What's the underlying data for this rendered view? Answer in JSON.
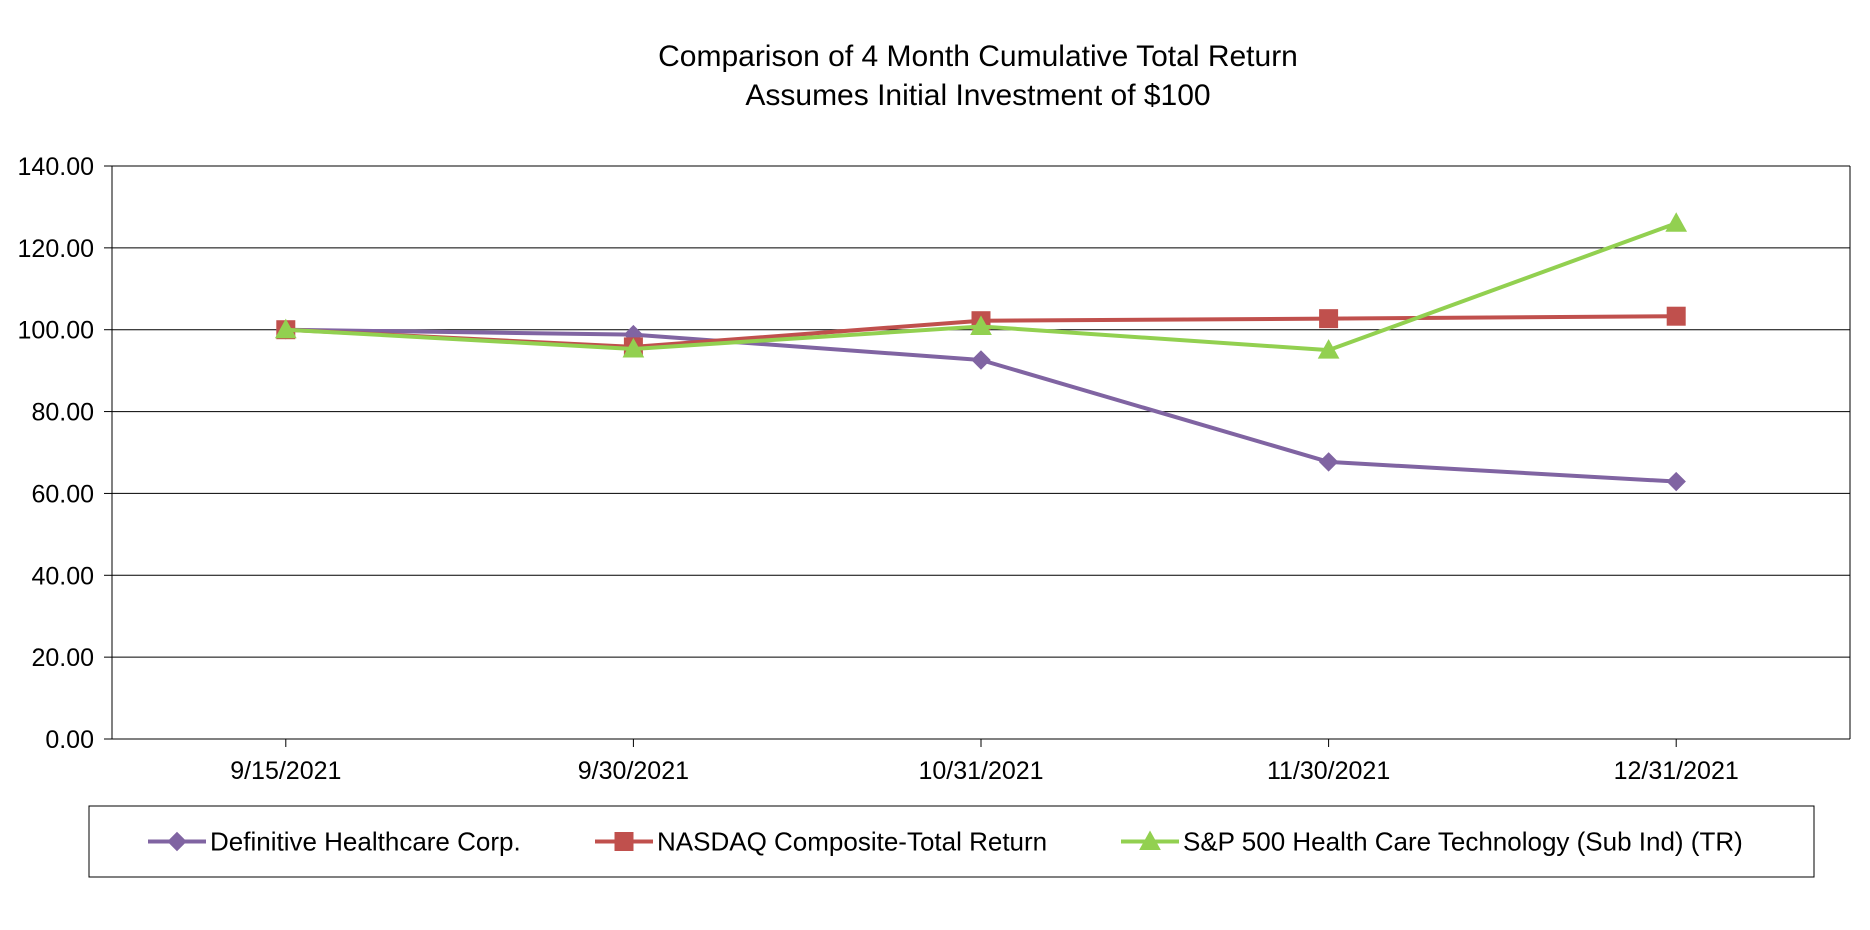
{
  "chart_data": {
    "type": "line",
    "title_lines": [
      "Comparison of 4 Month Cumulative Total Return",
      "Assumes Initial Investment of $100"
    ],
    "xlabel": "",
    "ylabel": "",
    "categories": [
      "9/15/2021",
      "9/30/2021",
      "10/31/2021",
      "11/30/2021",
      "12/31/2021"
    ],
    "ylim": [
      0,
      140
    ],
    "y_ticks": [
      "0.00",
      "20.00",
      "40.00",
      "60.00",
      "80.00",
      "100.00",
      "120.00",
      "140.00"
    ],
    "grid": true,
    "legend_position": "bottom",
    "series": [
      {
        "name": "Definitive Healthcare Corp.",
        "marker": "diamond",
        "color": "#8064A2",
        "values": [
          100.0,
          98.8,
          92.6,
          67.7,
          62.9
        ]
      },
      {
        "name": "NASDAQ Composite-Total Return",
        "marker": "square",
        "color": "#C0504D",
        "values": [
          100.0,
          95.8,
          102.2,
          102.7,
          103.3
        ]
      },
      {
        "name": "S&P 500 Health Care Technology (Sub Ind) (TR)",
        "marker": "triangle",
        "color": "#92D050",
        "values": [
          100.0,
          95.3,
          100.8,
          95.0,
          126.0
        ]
      }
    ]
  }
}
